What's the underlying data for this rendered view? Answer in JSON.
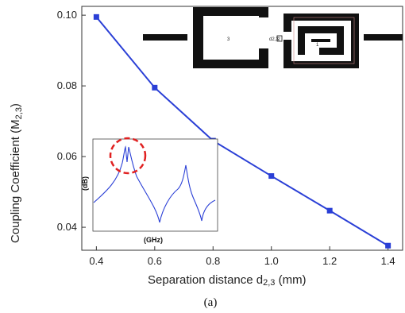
{
  "chart_data": {
    "type": "line",
    "x": [
      0.4,
      0.6,
      0.8,
      1.0,
      1.2,
      1.4
    ],
    "series": [
      {
        "values": [
          0.0995,
          0.0795,
          0.0645,
          0.0545,
          0.0447,
          0.0348
        ],
        "color": "#2a3fd6"
      }
    ],
    "xlabel": "Separation distance d",
    "xlabel_sub": "2,3",
    "xlabel_unit": " (mm)",
    "ylabel": "Coupling Coefficient (M",
    "ylabel_sub": "2,3",
    "ylabel_end": ")",
    "xlim": [
      0.35,
      1.45
    ],
    "ylim": [
      0.0335,
      0.1025
    ],
    "xticks": [
      "0.4",
      "0.6",
      "0.8",
      "1.0",
      "1.2",
      "1.4"
    ],
    "yticks": [
      "0.04",
      "0.06",
      "0.08",
      "0.10"
    ],
    "grid": false,
    "caption": "(a)",
    "inset": {
      "ylabel": "(dB)",
      "xlabel": "(GHz)",
      "highlight_color": "#e02020"
    },
    "resonator_labels": [
      "3",
      "2",
      "1"
    ],
    "resonator_small_label": "d2,3"
  }
}
